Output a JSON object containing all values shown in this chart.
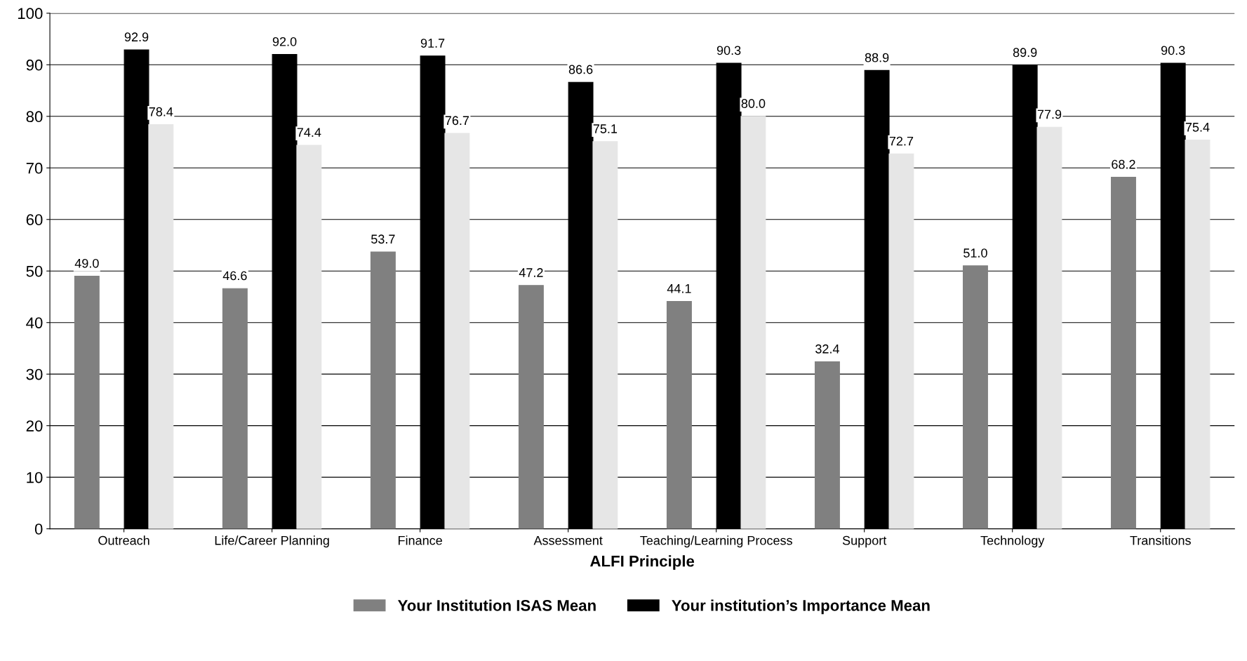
{
  "chart_data": {
    "type": "bar",
    "xlabel": "ALFI Principle",
    "categories": [
      "Outreach",
      "Life/Career Planning",
      "Finance",
      "Assessment",
      "Teaching/Learning Process",
      "Support",
      "Technology",
      "Transitions"
    ],
    "series": [
      {
        "name": "Your Institution ISAS Mean",
        "color": "#808080",
        "values": [
          49.0,
          46.6,
          53.7,
          47.2,
          44.1,
          32.4,
          51.0,
          68.2
        ],
        "value_labels": [
          "49.0",
          "46.6",
          "53.7",
          "47.2",
          "44.1",
          "32.4",
          "51.0",
          "68.2"
        ]
      },
      {
        "name": "Your institution’s Importance Mean",
        "color": "#000000",
        "values": [
          92.9,
          92.0,
          91.7,
          86.6,
          90.3,
          88.9,
          89.9,
          90.3
        ],
        "value_labels": [
          "92.9",
          "92.0",
          "91.7",
          "86.6",
          "90.3",
          "88.9",
          "89.9",
          "90.3"
        ]
      },
      {
        "color": "#e6e6e6",
        "values": [
          78.4,
          74.4,
          76.7,
          75.1,
          80.0,
          72.7,
          77.9,
          75.4
        ],
        "value_labels": [
          "78.4",
          "74.4",
          "76.7",
          "75.1",
          "80.0",
          "72.7",
          "77.9",
          "75.4"
        ]
      }
    ],
    "ylim": [
      0,
      100
    ],
    "yticks": [
      0,
      10,
      20,
      30,
      40,
      50,
      60,
      70,
      80,
      90,
      100
    ],
    "grid": "y",
    "legend": "bottom"
  }
}
